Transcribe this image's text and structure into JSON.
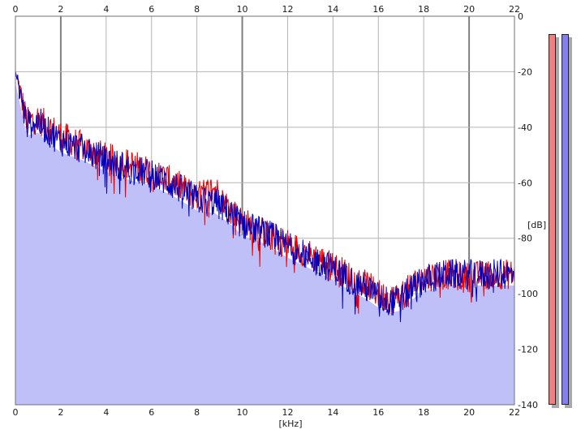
{
  "spectrum": {
    "x_unit_label": "[kHz]",
    "y_unit_label": "[dB]",
    "x_ticks": [
      "0",
      "2",
      "4",
      "6",
      "8",
      "10",
      "12",
      "14",
      "16",
      "18",
      "20",
      "22"
    ],
    "y_ticks": [
      "0",
      "-20",
      "-40",
      "-60",
      "-80",
      "-100",
      "-120",
      "-140"
    ],
    "x_range_khz": [
      0,
      22
    ],
    "y_range_db": [
      -140,
      0
    ],
    "colors": {
      "plot_background": "#ffffff",
      "grid_line": "#b4b4b4",
      "grid_major": "#808080",
      "fill": "#c0c0f8",
      "left_channel": "#e80000",
      "right_channel": "#0000c0"
    }
  },
  "chart_data": {
    "type": "line",
    "xlabel": "[kHz]",
    "ylabel": "[dB]",
    "xlim": [
      0,
      22
    ],
    "ylim": [
      -140,
      0
    ],
    "grid": true,
    "x": [
      0.0,
      0.5,
      1.0,
      1.5,
      2.0,
      3.0,
      4.0,
      5.0,
      6.0,
      7.0,
      8.0,
      8.8,
      9.5,
      10.0,
      11.0,
      12.0,
      13.0,
      14.0,
      15.0,
      15.5,
      16.0,
      16.5,
      17.0,
      17.5,
      18.0,
      19.0,
      20.0,
      21.0,
      22.0
    ],
    "series": [
      {
        "values": [
          -20,
          -38,
          -37,
          -40,
          -43,
          -47,
          -51,
          -53,
          -56,
          -60,
          -65,
          -62,
          -70,
          -74,
          -78,
          -82,
          -86,
          -90,
          -95,
          -97,
          -100,
          -102,
          -101,
          -97,
          -94,
          -93,
          -94,
          -93,
          -93
        ]
      },
      {
        "values": [
          -20,
          -39,
          -38,
          -42,
          -45,
          -48,
          -52,
          -55,
          -57,
          -61,
          -66,
          -67,
          -71,
          -75,
          -78,
          -83,
          -87,
          -91,
          -96,
          -98,
          -101,
          -103,
          -102,
          -98,
          -95,
          -93,
          -93,
          -93,
          -93
        ]
      }
    ],
    "fill_under": true
  }
}
